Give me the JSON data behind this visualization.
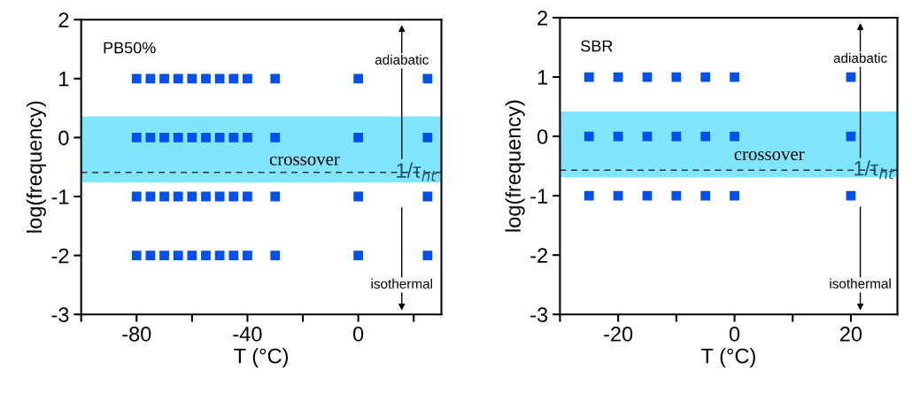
{
  "chart_data": [
    {
      "type": "scatter",
      "xlabel": "T (°C)",
      "ylabel": "log(frequency)",
      "annotations": [
        "PB50%",
        "adiabatic",
        "isothermal"
      ],
      "marker": "square",
      "grid": false,
      "xlim": [
        -100,
        30
      ],
      "xticks": [
        {
          "value": -100,
          "label": null
        },
        -80,
        {
          "value": -60,
          "label": null
        },
        -40,
        {
          "value": -20,
          "label": null
        },
        0,
        {
          "value": 20,
          "label": null
        }
      ],
      "ylim": [
        -3,
        2
      ],
      "yticks": [
        -3,
        -2,
        -1,
        0,
        1,
        2
      ],
      "series": [
        {
          "color": "#0050f0",
          "x": [
            -80,
            -75,
            -70,
            -65,
            -60,
            -55,
            -50,
            -45,
            -40,
            -30,
            0,
            25
          ],
          "values": [
            1,
            1,
            1,
            1,
            1,
            1,
            1,
            1,
            1,
            1,
            1,
            1
          ]
        },
        {
          "color": "#0050f0",
          "x": [
            -80,
            -75,
            -70,
            -65,
            -60,
            -55,
            -50,
            -45,
            -40,
            -30,
            0,
            25
          ],
          "values": [
            0,
            0,
            0,
            0,
            0,
            0,
            0,
            0,
            0,
            0,
            0,
            0
          ]
        },
        {
          "color": "#0050f0",
          "x": [
            -80,
            -75,
            -70,
            -65,
            -60,
            -55,
            -50,
            -45,
            -40,
            -30,
            0,
            25
          ],
          "values": [
            -1,
            -1,
            -1,
            -1,
            -1,
            -1,
            -1,
            -1,
            -1,
            -1,
            -1,
            -1
          ]
        },
        {
          "color": "#0050f0",
          "x": [
            -80,
            -75,
            -70,
            -65,
            -60,
            -55,
            -50,
            -45,
            -40,
            -30,
            0,
            25
          ],
          "values": [
            -2,
            -2,
            -2,
            -2,
            -2,
            -2,
            -2,
            -2,
            -2,
            -2,
            -2,
            -2
          ]
        }
      ],
      "bands": [
        {
          "axis": "y",
          "from": -0.76,
          "to": 0.36,
          "label": "crossover",
          "color": "#80e5ff"
        }
      ],
      "ref_lines": [
        {
          "axis": "y",
          "value": -0.59,
          "label": "1/τ$_{ht}$",
          "color": "#333333",
          "line_style": "dashed"
        }
      ]
    },
    {
      "type": "scatter",
      "xlabel": "T (°C)",
      "ylabel": "log(frequency)",
      "annotations": [
        "SBR",
        "adiabatic",
        "isothermal"
      ],
      "marker": "square",
      "grid": false,
      "xlim": [
        -30,
        28
      ],
      "xticks": [
        {
          "value": -30,
          "label": null
        },
        -20,
        {
          "value": -10,
          "label": null
        },
        0,
        {
          "value": 10,
          "label": null
        },
        20
      ],
      "ylim": [
        -3,
        2
      ],
      "yticks": [
        -3,
        -2,
        -1,
        0,
        1,
        2
      ],
      "series": [
        {
          "color": "#0050f0",
          "x": [
            -25,
            -20,
            -15,
            -10,
            -5,
            0,
            20
          ],
          "values": [
            1,
            1,
            1,
            1,
            1,
            1,
            1
          ]
        },
        {
          "color": "#0050f0",
          "x": [
            -25,
            -20,
            -15,
            -10,
            -5,
            0,
            20
          ],
          "values": [
            0,
            0,
            0,
            0,
            0,
            0,
            0
          ]
        },
        {
          "color": "#0050f0",
          "x": [
            -25,
            -20,
            -15,
            -10,
            -5,
            0,
            20
          ],
          "values": [
            -1,
            -1,
            -1,
            -1,
            -1,
            -1,
            -1
          ]
        }
      ],
      "bands": [
        {
          "axis": "y",
          "from": -0.69,
          "to": 0.42,
          "label": "crossover",
          "color": "#80e5ff"
        }
      ],
      "ref_lines": [
        {
          "axis": "y",
          "value": -0.57,
          "label": "1/τ$_{ht}$",
          "color": "#333333",
          "line_style": "dashed"
        }
      ]
    }
  ]
}
